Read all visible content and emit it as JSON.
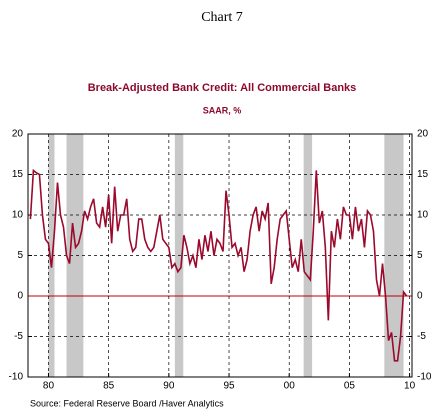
{
  "header": {
    "title": "Chart 7"
  },
  "chart_data": {
    "type": "line",
    "title": "Break-Adjusted Bank Credit: All Commercial Banks",
    "subtitle": "SAAR, %",
    "source": "Source:  Federal Reserve Board /Haver Analytics",
    "xlim": [
      1978.3,
      2010.2
    ],
    "xticks": [
      {
        "value": 1980,
        "label": "80"
      },
      {
        "value": 1985,
        "label": "85"
      },
      {
        "value": 1990,
        "label": "90"
      },
      {
        "value": 1995,
        "label": "95"
      },
      {
        "value": 2000,
        "label": "00"
      },
      {
        "value": 2005,
        "label": "05"
      },
      {
        "value": 2010,
        "label": "10"
      }
    ],
    "ylim": [
      -10,
      20
    ],
    "yticks": [
      -10,
      -5,
      0,
      5,
      10,
      15,
      20
    ],
    "grid": true,
    "zero_line_color": "#c00000",
    "shade_color": "#c8c8c8",
    "shaded_periods": [
      [
        1980.0,
        1980.5
      ],
      [
        1981.5,
        1982.9
      ],
      [
        1990.5,
        1991.2
      ],
      [
        2001.2,
        2001.9
      ],
      [
        2007.9,
        2009.5
      ]
    ],
    "x": [
      1978.5,
      1978.75,
      1979,
      1979.25,
      1979.5,
      1979.75,
      1980,
      1980.25,
      1980.5,
      1980.75,
      1981,
      1981.25,
      1981.5,
      1981.75,
      1982,
      1982.25,
      1982.5,
      1982.75,
      1983,
      1983.25,
      1983.5,
      1983.75,
      1984,
      1984.25,
      1984.5,
      1984.75,
      1985,
      1985.25,
      1985.5,
      1985.75,
      1986,
      1986.25,
      1986.5,
      1986.75,
      1987,
      1987.25,
      1987.5,
      1987.75,
      1988,
      1988.25,
      1988.5,
      1988.75,
      1989,
      1989.25,
      1989.5,
      1989.75,
      1990,
      1990.25,
      1990.5,
      1990.75,
      1991,
      1991.25,
      1991.5,
      1991.75,
      1992,
      1992.25,
      1992.5,
      1992.75,
      1993,
      1993.25,
      1993.5,
      1993.75,
      1994,
      1994.25,
      1994.5,
      1994.75,
      1995,
      1995.25,
      1995.5,
      1995.75,
      1996,
      1996.25,
      1996.5,
      1996.75,
      1997,
      1997.25,
      1997.5,
      1997.75,
      1998,
      1998.25,
      1998.5,
      1998.75,
      1999,
      1999.25,
      1999.5,
      1999.75,
      2000,
      2000.25,
      2000.5,
      2000.75,
      2001,
      2001.25,
      2001.5,
      2001.75,
      2002,
      2002.25,
      2002.5,
      2002.75,
      2003,
      2003.25,
      2003.5,
      2003.75,
      2004,
      2004.25,
      2004.5,
      2004.75,
      2005,
      2005.25,
      2005.5,
      2005.75,
      2006,
      2006.25,
      2006.5,
      2006.75,
      2007,
      2007.25,
      2007.5,
      2007.75,
      2008,
      2008.25,
      2008.5,
      2008.75,
      2009,
      2009.25,
      2009.5,
      2009.75
    ],
    "series": [
      {
        "color": "#9b0a2d",
        "values": [
          9.5,
          15.5,
          15.2,
          15,
          10,
          7,
          6.5,
          3.5,
          8,
          14,
          10,
          8.5,
          5,
          4,
          9,
          6,
          6.5,
          8,
          10.5,
          9.5,
          11,
          12,
          9,
          8.5,
          11,
          8.5,
          12.5,
          6.5,
          13.5,
          8,
          10,
          10,
          12,
          7,
          5.5,
          6,
          9.5,
          9.5,
          7,
          6,
          5.5,
          6,
          8,
          10,
          7,
          6.5,
          6,
          3.5,
          4,
          3,
          3.5,
          7.5,
          6,
          4,
          5,
          3.5,
          7,
          4.5,
          7.5,
          5.5,
          8,
          5,
          7,
          6.5,
          5.5,
          13,
          10,
          6,
          6.5,
          5,
          6,
          3,
          4.5,
          8,
          10,
          11,
          8,
          10.5,
          9.5,
          11.5,
          1.5,
          3.5,
          7,
          9.5,
          10,
          10.5,
          7,
          3.5,
          4.5,
          3,
          7,
          3,
          2.5,
          2,
          8,
          15.5,
          9,
          10.5,
          6,
          -3,
          8,
          6,
          9.5,
          7,
          11,
          10,
          10,
          7,
          11,
          8,
          9.5,
          6,
          10.5,
          10,
          8,
          2,
          0,
          4,
          0,
          -5.5,
          -4.5,
          -8,
          -8,
          -5,
          0.5,
          0
        ]
      }
    ]
  }
}
